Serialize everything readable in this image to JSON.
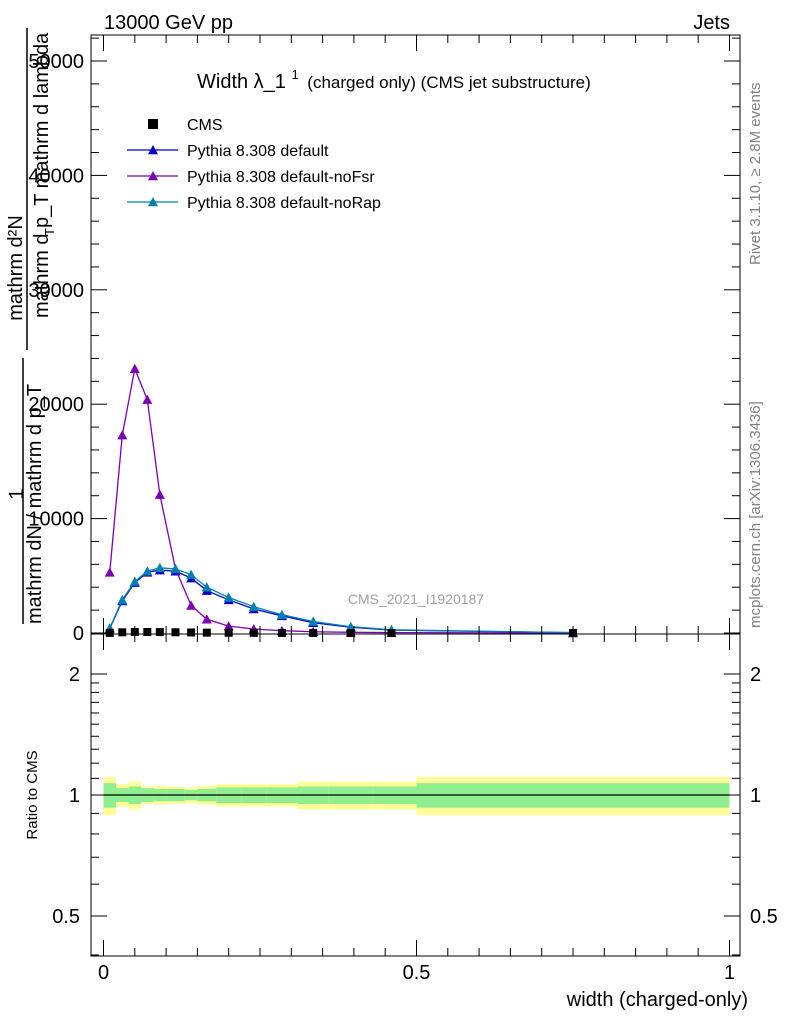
{
  "header": {
    "energy_label": "13000 GeV pp",
    "process_label": "Jets",
    "analysis_id": "CMS_2021_I1920187",
    "rivet_label": "Rivet 3.1.10, ≥ 2.8M events",
    "site_label": "mcplots.cern.ch [arXiv:1306.3436]"
  },
  "main_panel": {
    "title_main": "Width λ_1",
    "title_sup": "1",
    "title_rest": "(charged only) (CMS jet substructure)",
    "ylabel_numerator": "mathrm d²N",
    "ylabel_denominator": "mathrm d p_T mathrm d lambda",
    "ylabel_sub": "T",
    "yprefix_numerator": "1",
    "yprefix_denominator": "mathrm dN / mathrm d p_T",
    "yprefix_sub": "T"
  },
  "ratio_panel": {
    "ylabel": "Ratio to CMS",
    "xlabel": "width (charged-only)"
  },
  "colors": {
    "cms": "#000000",
    "default": "#0000cc",
    "noFsr": "#7b00b4",
    "noRap": "#0080b0",
    "band_inner": "#90ee90",
    "band_outer": "#ffff99"
  },
  "chart_data": {
    "type": "line",
    "xlim": [
      0,
      1
    ],
    "ylim_main": [
      0,
      52000
    ],
    "ylim_ratio": [
      0.35,
      2.3
    ],
    "x_ticks": [
      {
        "value": 0,
        "label": "0"
      },
      {
        "value": 0.5,
        "label": "0.5"
      },
      {
        "value": 1,
        "label": "1"
      }
    ],
    "y_ticks_main": [
      {
        "value": 0,
        "label": "0"
      },
      {
        "value": 10000,
        "label": "10000"
      },
      {
        "value": 20000,
        "label": "20000"
      },
      {
        "value": 30000,
        "label": "30000"
      },
      {
        "value": 40000,
        "label": "40000"
      },
      {
        "value": 50000,
        "label": "50000"
      }
    ],
    "y_ticks_ratio": [
      {
        "value": 0.5,
        "label": "0.5"
      },
      {
        "value": 1,
        "label": "1"
      },
      {
        "value": 2,
        "label": "2"
      }
    ],
    "cms": {
      "name": "CMS",
      "x": [
        0.01,
        0.03,
        0.05,
        0.07,
        0.09,
        0.115,
        0.14,
        0.165,
        0.2,
        0.24,
        0.285,
        0.335,
        0.395,
        0.46,
        0.75
      ],
      "y": [
        10,
        60,
        90,
        90,
        80,
        65,
        45,
        30,
        18,
        11,
        6,
        3,
        1.5,
        0.8,
        0.1
      ]
    },
    "series": [
      {
        "name": "Pythia 8.308 default",
        "color_key": "default",
        "x": [
          0.01,
          0.03,
          0.05,
          0.07,
          0.09,
          0.115,
          0.14,
          0.165,
          0.2,
          0.24,
          0.285,
          0.335,
          0.395,
          0.46,
          0.75
        ],
        "y": [
          400,
          2800,
          4400,
          5300,
          5500,
          5400,
          4800,
          3700,
          2900,
          2100,
          1500,
          900,
          500,
          250,
          30
        ]
      },
      {
        "name": "Pythia 8.308 default-noFsr",
        "color_key": "noFsr",
        "x": [
          0.01,
          0.03,
          0.05,
          0.07,
          0.09,
          0.115,
          0.14,
          0.165,
          0.2,
          0.24,
          0.285,
          0.335,
          0.395,
          0.46,
          0.75
        ],
        "y": [
          5300,
          17300,
          23100,
          20400,
          12100,
          5600,
          2400,
          1200,
          600,
          350,
          200,
          110,
          60,
          30,
          5
        ]
      },
      {
        "name": "Pythia 8.308 default-noRap",
        "color_key": "noRap",
        "x": [
          0.01,
          0.03,
          0.05,
          0.07,
          0.09,
          0.115,
          0.14,
          0.165,
          0.2,
          0.24,
          0.285,
          0.335,
          0.395,
          0.46,
          0.75
        ],
        "y": [
          420,
          2900,
          4500,
          5400,
          5700,
          5600,
          5100,
          4000,
          3100,
          2300,
          1600,
          1000,
          550,
          280,
          35
        ]
      }
    ],
    "ratio_bands": {
      "edges": [
        0,
        0.02,
        0.04,
        0.06,
        0.08,
        0.1,
        0.13,
        0.15,
        0.18,
        0.22,
        0.26,
        0.31,
        0.36,
        0.43,
        0.5,
        1.0
      ],
      "inner": [
        0.07,
        0.04,
        0.05,
        0.04,
        0.035,
        0.035,
        0.03,
        0.035,
        0.045,
        0.045,
        0.045,
        0.05,
        0.05,
        0.05,
        0.07
      ],
      "outer": [
        0.11,
        0.065,
        0.08,
        0.05,
        0.055,
        0.05,
        0.045,
        0.055,
        0.065,
        0.065,
        0.065,
        0.08,
        0.08,
        0.08,
        0.11
      ]
    }
  }
}
